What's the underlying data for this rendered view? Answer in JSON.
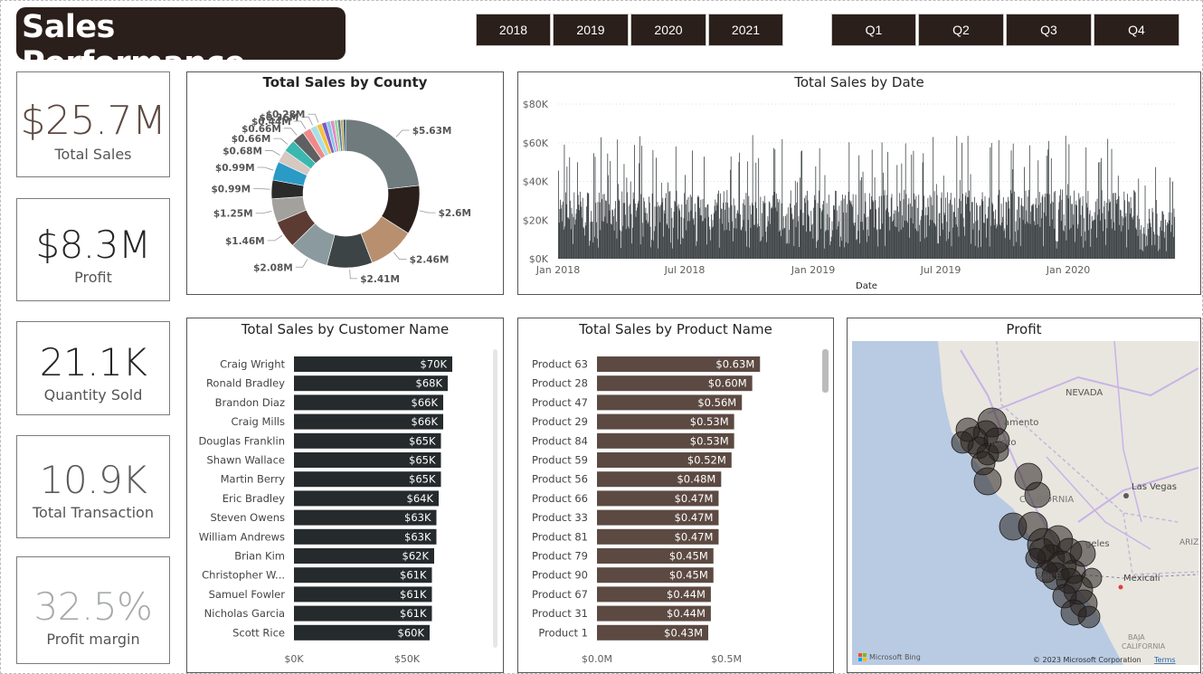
{
  "header": {
    "title": "Sales Performance"
  },
  "year_slicer": [
    "2018",
    "2019",
    "2020",
    "2021"
  ],
  "quarter_slicer": [
    "Q1",
    "Q2",
    "Q3",
    "Q4"
  ],
  "kpis": [
    {
      "value": "$25.7M",
      "label": "Total Sales",
      "color": "#5c4a42"
    },
    {
      "value": "$8.3M",
      "label": "Profit",
      "color": "#252423"
    },
    {
      "value": "21.1K",
      "label": "Quantity Sold",
      "color": "#252423"
    },
    {
      "value": "10.9K",
      "label": "Total Transaction",
      "color": "#5b5b5b"
    },
    {
      "value": "32.5%",
      "label": "Profit margin",
      "color": "#a8aaaa"
    }
  ],
  "map": {
    "title": "Profit",
    "labels": [
      "NEVADA",
      "amento",
      "ncisco",
      "CALIFORNIA",
      "Las Vegas",
      "geles",
      "San E",
      "Mexicali",
      "ARIZ",
      "BAJA",
      "CALIFORNIA"
    ],
    "bing": "Microsoft Bing",
    "copyright": "© 2023 Microsoft Corporation",
    "terms": "Terms"
  },
  "chart_data": [
    {
      "type": "pie",
      "title": "Total Sales by County",
      "values": [
        5.63,
        2.6,
        2.46,
        2.41,
        2.08,
        1.46,
        1.25,
        0.99,
        0.99,
        0.68,
        0.66,
        0.66,
        0.44,
        0.36,
        0.28,
        0.25,
        0.22,
        0.2,
        0.18,
        0.16,
        0.14,
        0.12
      ],
      "labels": [
        "$5.63M",
        "$2.6M",
        "$2.46M",
        "$2.41M",
        "$2.08M",
        "$1.46M",
        "$1.25M",
        "$0.99M",
        "$0.99M",
        "$0.68M",
        "$0.66M",
        "$0.66M",
        "$0.44M",
        "$0.36M",
        "$0.28M",
        "",
        "",
        "",
        "",
        "",
        "",
        ""
      ],
      "colors": [
        "#6f7b7d",
        "#2b1f1b",
        "#b8906f",
        "#3d4446",
        "#8b9a9e",
        "#5c3b33",
        "#a3a19e",
        "#2b2b2b",
        "#2a9bc6",
        "#d6c7c1",
        "#3ab8b0",
        "#5e5f60",
        "#f08a8a",
        "#a8e0e8",
        "#f5c242",
        "#7c5cc4",
        "#8ac6e8",
        "#e38bc4",
        "#9bd89b",
        "#607d8b",
        "#c4a35a",
        "#1f4e5a"
      ],
      "style": "donut"
    },
    {
      "type": "bar",
      "title": "Total Sales by Date",
      "xlabel": "Date",
      "ylabel": "",
      "ylim": [
        0,
        80000
      ],
      "yticks": [
        "$0K",
        "$20K",
        "$40K",
        "$60K",
        "$80K"
      ],
      "xticks": [
        "Jan 2018",
        "Jul 2018",
        "Jan 2019",
        "Jul 2019",
        "Jan 2020"
      ],
      "x_range": [
        "2018-01-01",
        "2020-07-31"
      ],
      "series_note": "daily values, ~10K to ~65K",
      "color": "#3e4446"
    },
    {
      "type": "bar",
      "orientation": "horizontal",
      "title": "Total Sales by Customer Name",
      "categories": [
        "Craig Wright",
        "Ronald Bradley",
        "Brandon Diaz",
        "Craig Mills",
        "Douglas Franklin",
        "Shawn Wallace",
        "Martin Berry",
        "Eric Bradley",
        "Steven Owens",
        "William Andrews",
        "Brian Kim",
        "Christopher W...",
        "Samuel Fowler",
        "Nicholas Garcia",
        "Scott Rice"
      ],
      "values": [
        70,
        68,
        66,
        66,
        65,
        65,
        65,
        64,
        63,
        63,
        62,
        61,
        61,
        61,
        60
      ],
      "value_labels": [
        "$70K",
        "$68K",
        "$66K",
        "$66K",
        "$65K",
        "$65K",
        "$65K",
        "$64K",
        "$63K",
        "$63K",
        "$62K",
        "$61K",
        "$61K",
        "$61K",
        "$60K"
      ],
      "xticks": [
        "$0K",
        "$50K"
      ],
      "xlim": [
        0,
        80
      ],
      "color": "#252b2c"
    },
    {
      "type": "bar",
      "orientation": "horizontal",
      "title": "Total Sales by Product Name",
      "categories": [
        "Product 63",
        "Product 28",
        "Product 47",
        "Product 29",
        "Product 84",
        "Product 59",
        "Product 56",
        "Product 66",
        "Product 33",
        "Product 81",
        "Product 79",
        "Product 90",
        "Product 67",
        "Product 31",
        "Product 1"
      ],
      "values": [
        0.63,
        0.6,
        0.56,
        0.53,
        0.53,
        0.52,
        0.48,
        0.47,
        0.47,
        0.47,
        0.45,
        0.45,
        0.44,
        0.44,
        0.43
      ],
      "value_labels": [
        "$0.63M",
        "$0.60M",
        "$0.56M",
        "$0.53M",
        "$0.53M",
        "$0.52M",
        "$0.48M",
        "$0.47M",
        "$0.47M",
        "$0.47M",
        "$0.45M",
        "$0.45M",
        "$0.44M",
        "$0.44M",
        "$0.43M"
      ],
      "xticks": [
        "$0.0M",
        "$0.5M"
      ],
      "xlim": [
        0,
        0.72
      ],
      "color": "#5c4a42"
    }
  ]
}
